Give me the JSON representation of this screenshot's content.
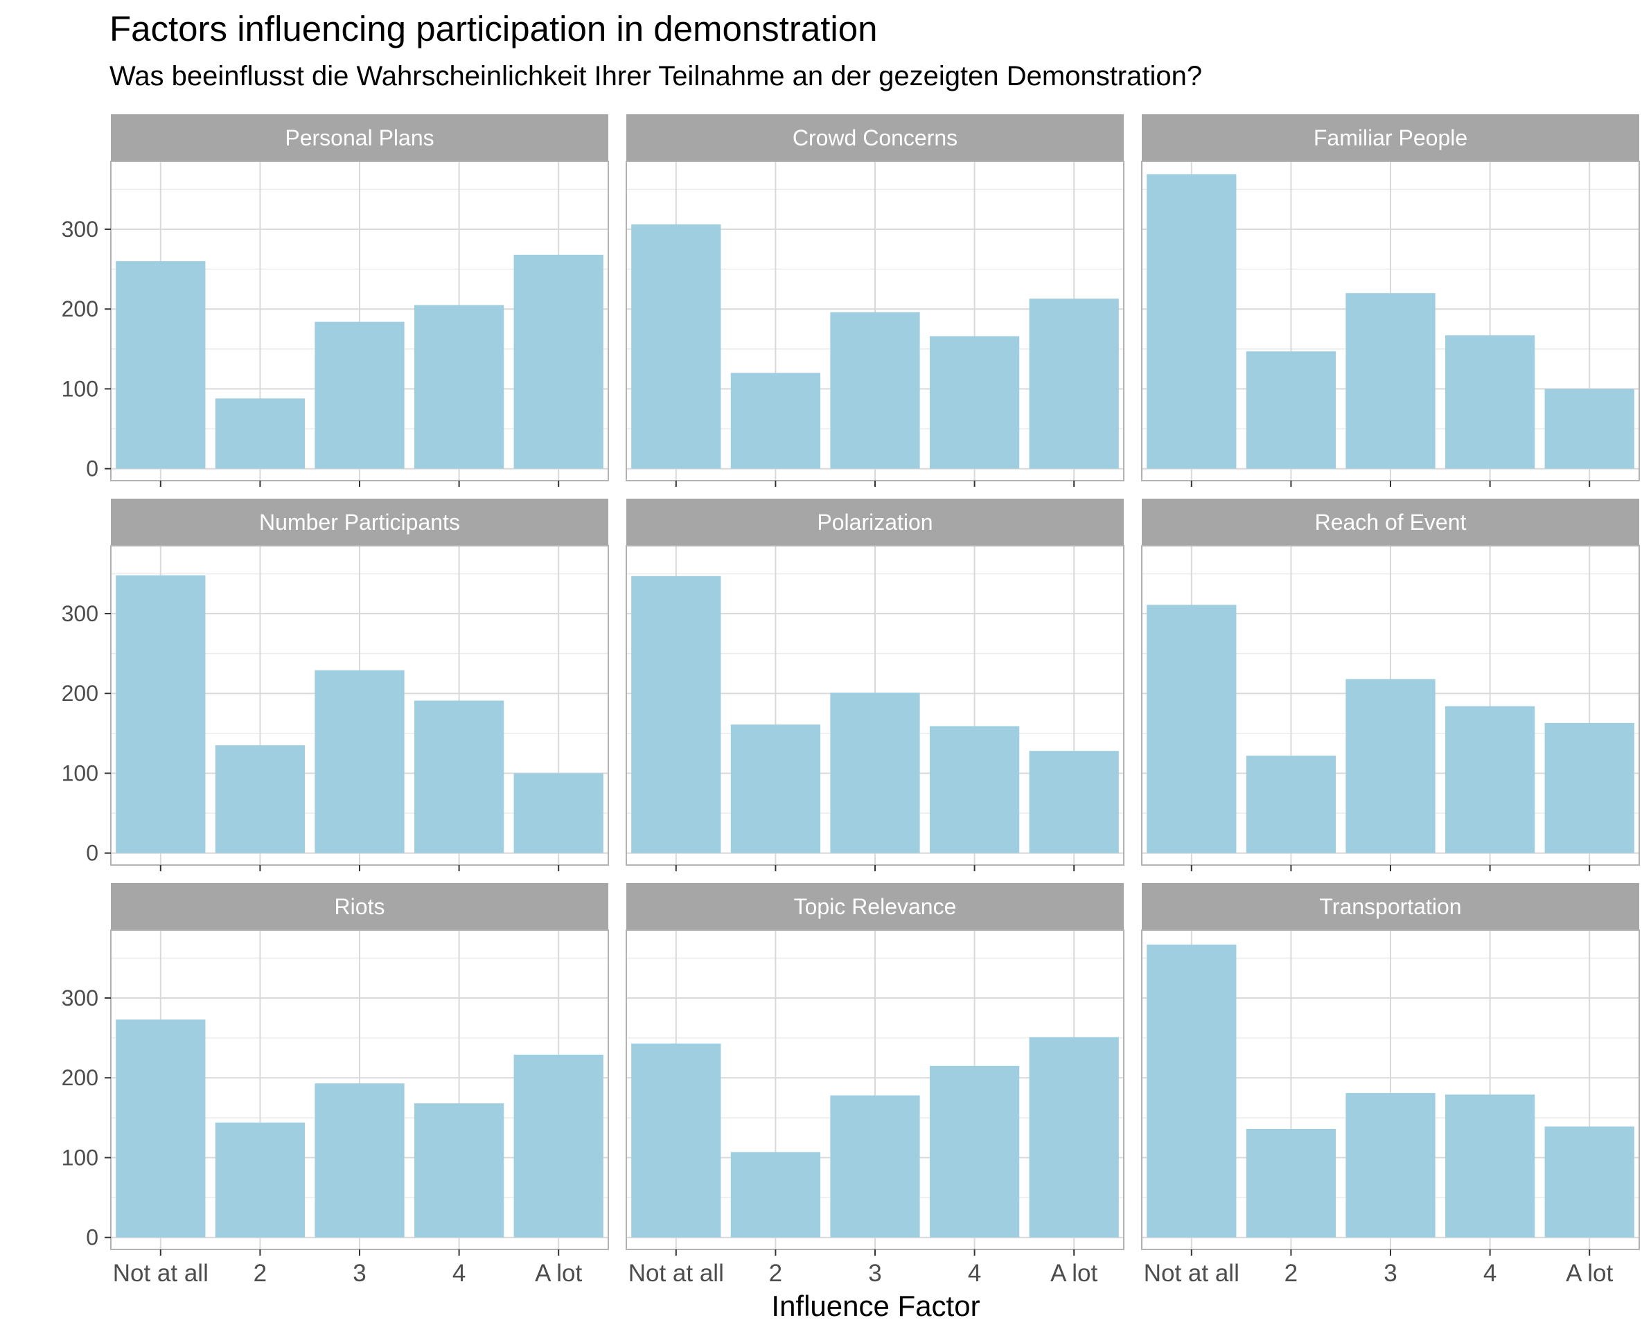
{
  "chart_data": {
    "type": "bar",
    "title": "Factors influencing participation in demonstration",
    "subtitle": "Was beeinflusst die Wahrscheinlichkeit Ihrer Teilnahme an der gezeigten Demonstration?",
    "xlabel": "Influence Factor",
    "ylabel": "",
    "categories": [
      "Not at all",
      "2",
      "3",
      "4",
      "A lot"
    ],
    "yticks": [
      0,
      100,
      200,
      300
    ],
    "ylim": [
      -15,
      385
    ],
    "grid": true,
    "colors": {
      "bar": "#9fcee0",
      "strip": "#a6a6a6",
      "panel_border": "#b3b3b3",
      "grid_major": "#d9d9d9",
      "grid_minor": "#ebebeb"
    },
    "facets": [
      {
        "name": "Personal Plans",
        "values": [
          260,
          88,
          184,
          205,
          268
        ]
      },
      {
        "name": "Crowd Concerns",
        "values": [
          306,
          120,
          196,
          166,
          213
        ]
      },
      {
        "name": "Familiar People",
        "values": [
          369,
          147,
          220,
          167,
          100
        ]
      },
      {
        "name": "Number Participants",
        "values": [
          348,
          135,
          229,
          191,
          100
        ]
      },
      {
        "name": "Polarization",
        "values": [
          347,
          161,
          201,
          159,
          128
        ]
      },
      {
        "name": "Reach of Event",
        "values": [
          311,
          122,
          218,
          184,
          163
        ]
      },
      {
        "name": "Riots",
        "values": [
          273,
          144,
          193,
          168,
          229
        ]
      },
      {
        "name": "Topic Relevance",
        "values": [
          243,
          107,
          178,
          215,
          251
        ]
      },
      {
        "name": "Transportation",
        "values": [
          367,
          136,
          181,
          179,
          139
        ]
      }
    ]
  }
}
